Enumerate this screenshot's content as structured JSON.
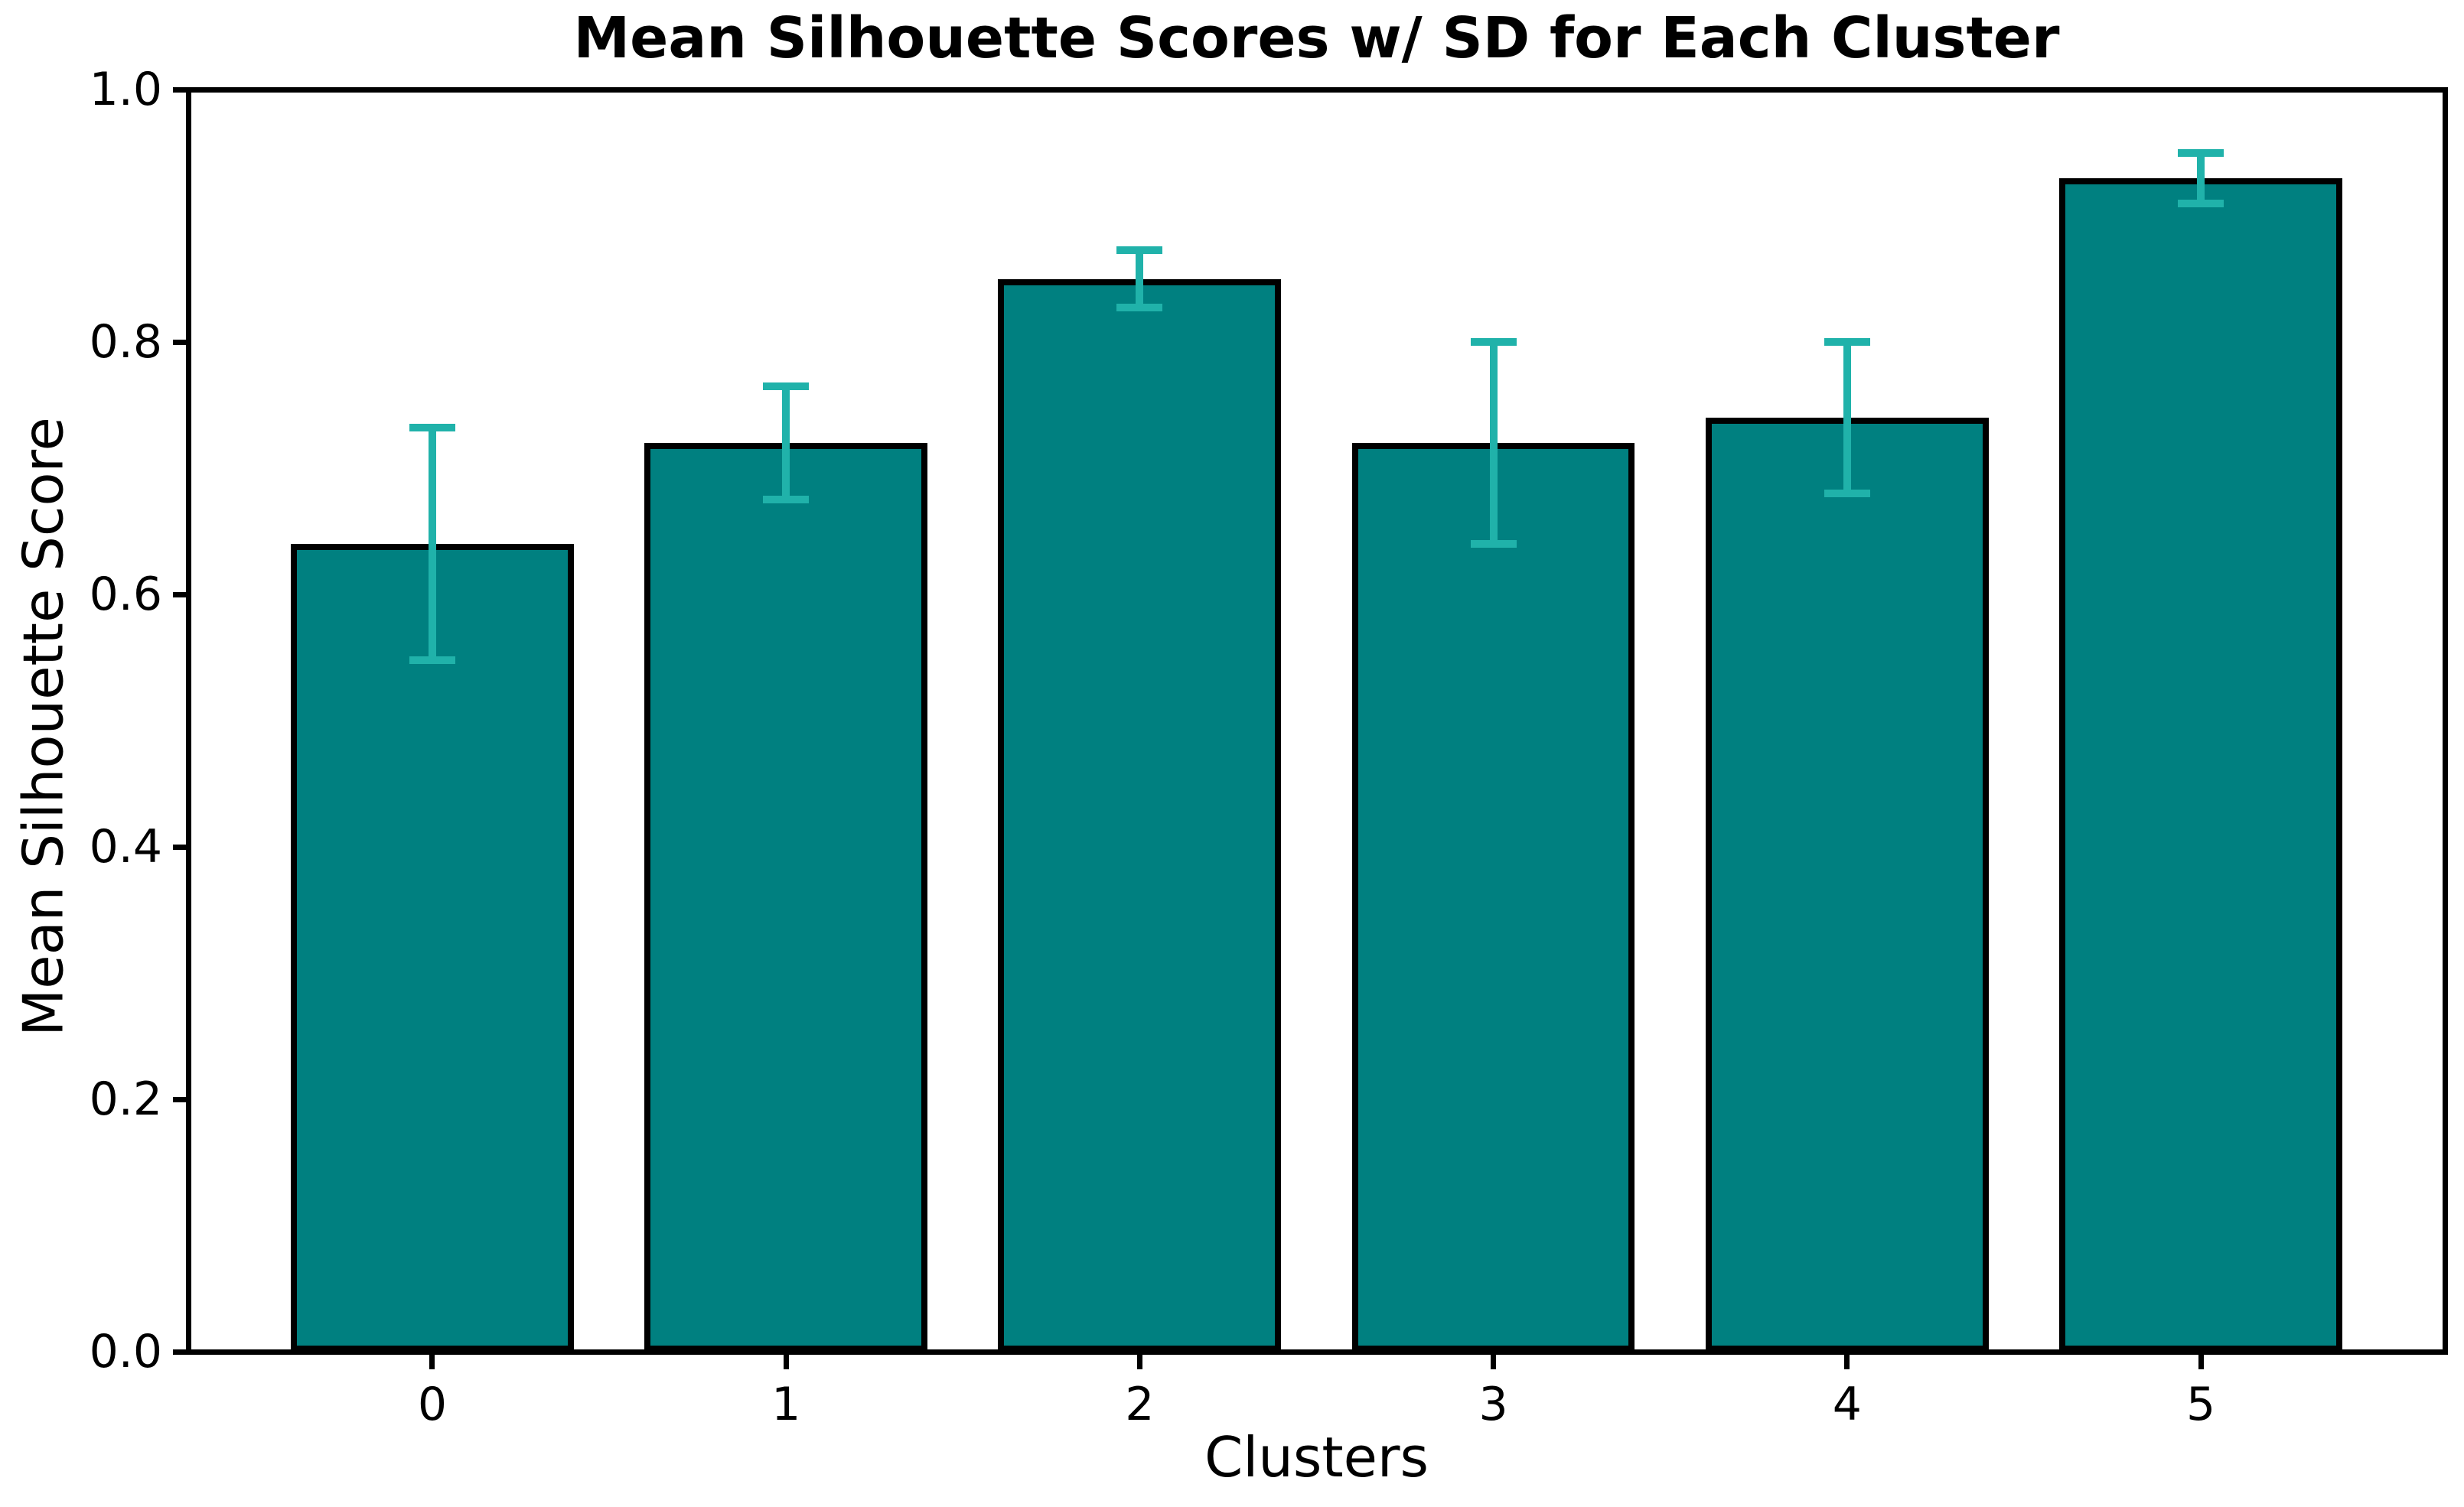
{
  "figure": {
    "background": "#ffffff"
  },
  "chart_data": {
    "type": "bar",
    "title": "Mean Silhouette Scores w/ SD for Each Cluster",
    "xlabel": "Clusters",
    "ylabel": "Mean Silhouette Score",
    "categories": [
      "0",
      "1",
      "2",
      "3",
      "4",
      "5"
    ],
    "values": [
      0.64,
      0.72,
      0.85,
      0.72,
      0.74,
      0.93
    ],
    "error_bars": {
      "kind": "standard deviation",
      "values": [
        0.092,
        0.045,
        0.023,
        0.08,
        0.06,
        0.02
      ]
    },
    "ylim": [
      0.0,
      1.0
    ],
    "xlim": [
      -0.69,
      5.69
    ],
    "yticks": [
      0.0,
      0.2,
      0.4,
      0.6,
      0.8,
      1.0
    ],
    "ytick_labels": [
      "0.0",
      "0.2",
      "0.4",
      "0.6",
      "0.8",
      "1.0"
    ],
    "grid": false,
    "legend": "none",
    "bar_color": "#008080",
    "bar_edge_color": "#000000",
    "error_color": "#20B2AA"
  }
}
